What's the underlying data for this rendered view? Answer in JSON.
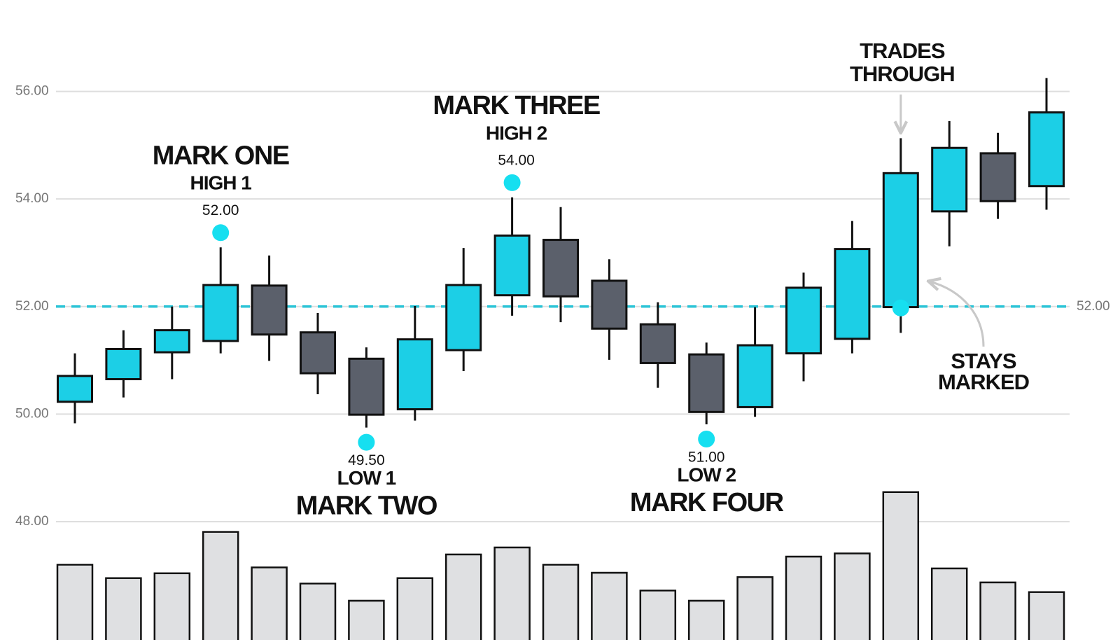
{
  "chart_data": {
    "type": "candlestick",
    "categories": [
      null,
      null,
      null,
      null,
      null,
      null,
      null,
      null,
      null,
      null,
      null,
      null,
      null,
      null,
      null,
      null,
      null,
      null,
      null,
      null,
      null
    ],
    "open": [
      50.23,
      50.65,
      51.15,
      51.36,
      52.39,
      51.52,
      51.03,
      50.09,
      51.19,
      52.21,
      53.24,
      52.48,
      51.67,
      51.11,
      50.13,
      51.13,
      51.4,
      51.99,
      53.77,
      54.85,
      54.24
    ],
    "high": [
      51.13,
      51.56,
      52.0,
      53.1,
      52.95,
      51.88,
      51.24,
      52.01,
      53.09,
      54.03,
      53.85,
      52.88,
      52.08,
      51.33,
      51.99,
      52.63,
      53.59,
      55.13,
      55.45,
      55.23,
      56.25
    ],
    "low": [
      49.83,
      50.31,
      50.65,
      51.13,
      50.99,
      50.37,
      49.75,
      49.88,
      50.8,
      51.83,
      51.71,
      51.01,
      50.49,
      49.81,
      49.95,
      50.61,
      51.13,
      51.51,
      53.12,
      53.63,
      53.8
    ],
    "close": [
      50.71,
      51.21,
      51.56,
      52.4,
      51.48,
      50.76,
      49.99,
      51.39,
      52.4,
      53.32,
      52.19,
      51.59,
      50.95,
      50.04,
      51.28,
      52.35,
      53.07,
      54.48,
      54.95,
      53.96,
      55.61
    ],
    "color_up": "#1ccfe6",
    "color_down": "#5b606b",
    "volume": {
      "color": "#dfe0e2",
      "values": [
        47.2,
        46.95,
        47.04,
        47.81,
        47.15,
        46.85,
        46.53,
        46.95,
        47.39,
        47.52,
        47.2,
        47.05,
        46.72,
        46.53,
        46.97,
        47.35,
        47.41,
        48.55,
        47.13,
        46.87,
        46.69
      ]
    },
    "ylim": [
      45.8,
      57.7
    ],
    "yticks": [
      {
        "value": 48,
        "label": "48.00"
      },
      {
        "value": 50,
        "label": "50.00"
      },
      {
        "value": 52,
        "label": "52.00"
      },
      {
        "value": 54,
        "label": "54.00"
      },
      {
        "value": 56,
        "label": "56.00"
      }
    ],
    "grid": true,
    "reference_line": {
      "value": 52,
      "label": "52.00",
      "color": "#2bc4d6"
    },
    "annotations": [
      {
        "title": "MARK ONE",
        "subtitle": "HIGH 1",
        "label": "52.00"
      },
      {
        "title": "MARK TWO",
        "subtitle": "LOW 1",
        "label": "49.50"
      },
      {
        "title": "MARK THREE",
        "subtitle": "HIGH 2",
        "label": "54.00"
      },
      {
        "title": "MARK FOUR",
        "subtitle": "LOW 2",
        "label": "51.00"
      }
    ],
    "callouts": [
      {
        "lines": [
          "TRADES",
          "THROUGH"
        ]
      },
      {
        "lines": [
          "STAYS",
          "MARKED"
        ]
      }
    ]
  }
}
